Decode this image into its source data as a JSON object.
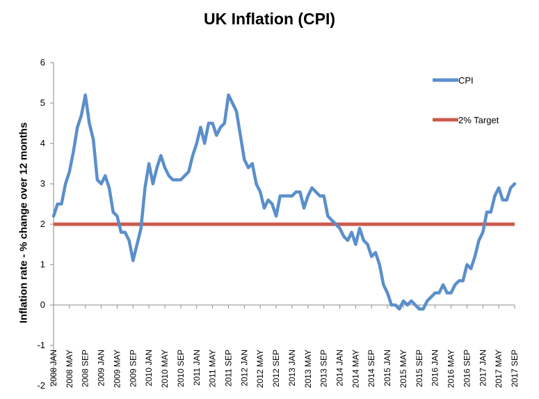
{
  "chart_data": {
    "type": "line",
    "title": "UK Inflation (CPI)",
    "ylabel": "Inflation rate  - % change over 12 months",
    "xlabel": "",
    "ylim": [
      -2,
      6
    ],
    "yticks": [
      -2,
      -1,
      0,
      1,
      2,
      3,
      4,
      5,
      6
    ],
    "grid": false,
    "legend": "top-right",
    "x_tick_labels": [
      "2008 JAN",
      "2008 MAY",
      "2008 SEP",
      "2009 JAN",
      "2009 MAY",
      "2009 SEP",
      "2010 JAN",
      "2010 MAY",
      "2010 SEP",
      "2011 JAN",
      "2011 MAY",
      "2011 SEP",
      "2012 JAN",
      "2012 MAY",
      "2012 SEP",
      "2013 JAN",
      "2013 MAY",
      "2013 SEP",
      "2014 JAN",
      "2014 MAY",
      "2014 SEP",
      "2015 JAN",
      "2015 MAY",
      "2015 SEP",
      "2016 JAN",
      "2016 MAY",
      "2016 SEP",
      "2017 JAN",
      "2017 MAY",
      "2017 SEP"
    ],
    "series": [
      {
        "name": "CPI",
        "color": "#5b8fcb",
        "values": [
          2.2,
          2.5,
          2.5,
          3.0,
          3.3,
          3.8,
          4.4,
          4.7,
          5.2,
          4.5,
          4.1,
          3.1,
          3.0,
          3.2,
          2.9,
          2.3,
          2.2,
          1.8,
          1.8,
          1.6,
          1.1,
          1.5,
          1.9,
          2.9,
          3.5,
          3.0,
          3.4,
          3.7,
          3.4,
          3.2,
          3.1,
          3.1,
          3.1,
          3.2,
          3.3,
          3.7,
          4.0,
          4.4,
          4.0,
          4.5,
          4.5,
          4.2,
          4.4,
          4.5,
          5.2,
          5.0,
          4.8,
          4.2,
          3.6,
          3.4,
          3.5,
          3.0,
          2.8,
          2.4,
          2.6,
          2.5,
          2.2,
          2.7,
          2.7,
          2.7,
          2.7,
          2.8,
          2.8,
          2.4,
          2.7,
          2.9,
          2.8,
          2.7,
          2.7,
          2.2,
          2.1,
          2.0,
          1.9,
          1.7,
          1.6,
          1.8,
          1.5,
          1.9,
          1.6,
          1.5,
          1.2,
          1.3,
          1.0,
          0.5,
          0.3,
          0.0,
          0.0,
          -0.1,
          0.1,
          0.0,
          0.1,
          0.0,
          -0.1,
          -0.1,
          0.1,
          0.2,
          0.3,
          0.3,
          0.5,
          0.3,
          0.3,
          0.5,
          0.6,
          0.6,
          1.0,
          0.9,
          1.2,
          1.6,
          1.8,
          2.3,
          2.3,
          2.7,
          2.9,
          2.6,
          2.6,
          2.9,
          3.0
        ]
      },
      {
        "name": "2% Target",
        "color": "#cc5a4e",
        "values": [
          2,
          2
        ]
      }
    ]
  }
}
